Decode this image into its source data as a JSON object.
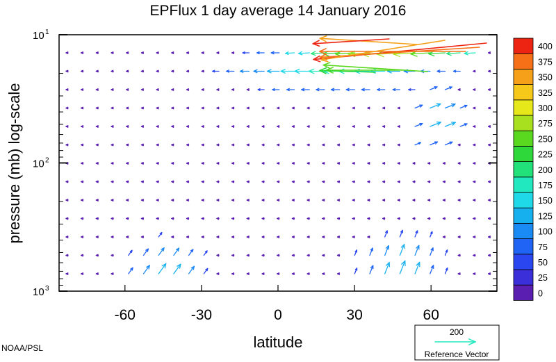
{
  "chart_data": {
    "type": "vector-field",
    "title": "EPFlux  1 day average  14 January   2016",
    "xlabel": "latitude",
    "ylabel": "pressure (mb)  log-scale",
    "xlim": [
      -90,
      90
    ],
    "ylim": [
      1000,
      10
    ],
    "y_scale": "log",
    "x_ticks": [
      -60,
      -30,
      0,
      30,
      60
    ],
    "x_tick_labels": [
      "-60",
      "-30",
      "0",
      "30",
      "60"
    ],
    "y_ticks": [
      10,
      100,
      1000
    ],
    "y_tick_labels": [
      {
        "base": "10",
        "exp": "1"
      },
      {
        "base": "10",
        "exp": "2"
      },
      {
        "base": "10",
        "exp": "3"
      }
    ],
    "colorbar": {
      "levels": [
        0,
        25,
        50,
        75,
        100,
        125,
        150,
        175,
        200,
        225,
        250,
        275,
        300,
        325,
        350,
        375,
        400
      ],
      "labels": [
        "0",
        "25",
        "50",
        "75",
        "100",
        "125",
        "150",
        "175",
        "200",
        "225",
        "250",
        "275",
        "300",
        "325",
        "350",
        "375",
        "400"
      ],
      "colors": [
        "#5a1fb0",
        "#3a2fd8",
        "#2a46f0",
        "#1f64f4",
        "#1a8af4",
        "#17b0ee",
        "#1fd8e8",
        "#22e8bf",
        "#22e07a",
        "#2ed83a",
        "#5ad820",
        "#a8e020",
        "#e6e81a",
        "#f5c81a",
        "#f5a018",
        "#f57016",
        "#ee2412"
      ]
    },
    "reference_vector": {
      "magnitude": 200,
      "label": "200",
      "caption": "Reference Vector",
      "color": "#22e8bf"
    },
    "credit": "NOAA/PSL"
  }
}
